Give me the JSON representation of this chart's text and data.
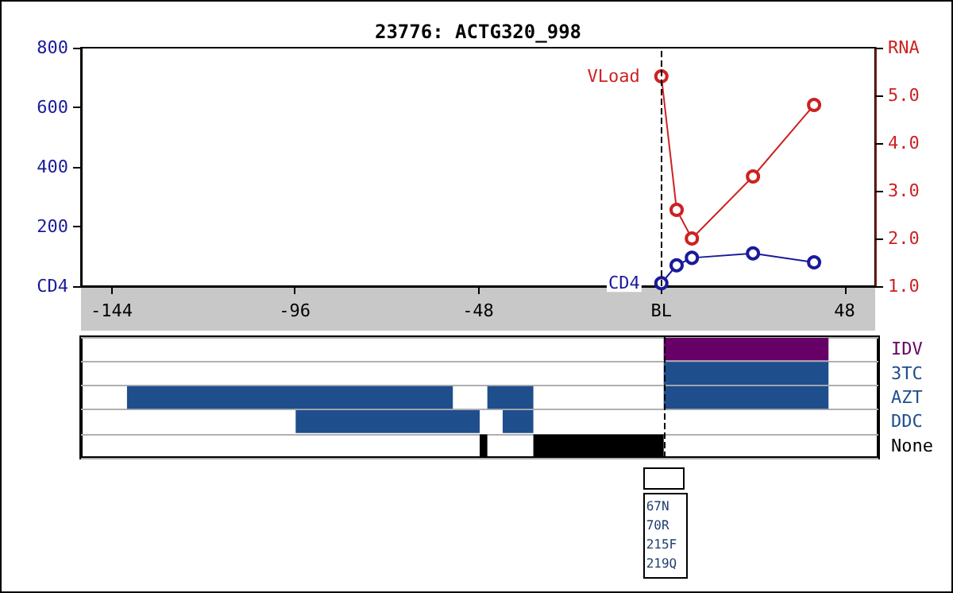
{
  "chart_data": [
    {
      "type": "line",
      "title": "23776: ACTG320_998",
      "x": [
        0,
        4,
        8,
        24,
        40
      ],
      "xlim": [
        -152,
        56
      ],
      "xticks": [
        -144,
        -96,
        -48,
        {
          "value": 0,
          "label": "BL"
        },
        48
      ],
      "ylim": [
        0,
        800
      ],
      "yticks": [
        {
          "value": 0,
          "label": "CD4"
        },
        200,
        400,
        600,
        800
      ],
      "y2lim": [
        1,
        6
      ],
      "y2ticks": [
        {
          "value": 1,
          "label": "1.0"
        },
        {
          "value": 2,
          "label": "2.0"
        },
        {
          "value": 3,
          "label": "3.0"
        },
        {
          "value": 4,
          "label": "4.0"
        },
        {
          "value": 5,
          "label": "5.0"
        },
        {
          "value": 6,
          "label": "RNA"
        }
      ],
      "marker": "circle",
      "series": [
        {
          "name": "VLoad",
          "color": "#cc2222",
          "axis": "y2",
          "values": [
            5.4,
            2.6,
            2.0,
            3.3,
            4.8
          ]
        },
        {
          "name": "CD4",
          "color": "#1a1a99",
          "values": [
            10,
            70,
            95,
            110,
            80
          ]
        }
      ],
      "ref_lines": [
        {
          "axis": "x",
          "value": 0,
          "line_style": "dashed",
          "color": "#000000"
        }
      ]
    },
    {
      "type": "bar",
      "orientation": "horizontal",
      "categories": [
        "IDV",
        "3TC",
        "AZT",
        "DDC",
        "None"
      ],
      "xlim": [
        -152,
        56
      ],
      "tick_labels": "y",
      "grid": "y",
      "series": [
        {
          "values": [
            43,
            43,
            85,
            48,
            2
          ],
          "base": [
            0,
            0,
            -140,
            -96,
            -48
          ],
          "colors": [
            "#660066",
            "#1f4e8c",
            "#1f4e8c",
            "#1f4e8c",
            "#000000"
          ]
        },
        {
          "values": [
            null,
            null,
            12,
            8,
            34
          ],
          "base": [
            null,
            null,
            -46,
            -42,
            -34
          ],
          "colors": [
            null,
            null,
            "#1f4e8c",
            "#1f4e8c",
            "#000000"
          ]
        },
        {
          "values": [
            null,
            null,
            43,
            null,
            null
          ],
          "base": [
            null,
            null,
            0,
            null,
            null
          ],
          "colors": [
            null,
            null,
            "#1f4e8c",
            null,
            null
          ]
        }
      ],
      "ref_lines": [
        {
          "axis": "x",
          "value": 0,
          "line_style": "dashed",
          "color": "#000000"
        }
      ],
      "annotations": [
        "67N\n70R\n215F\n219Q"
      ]
    }
  ]
}
